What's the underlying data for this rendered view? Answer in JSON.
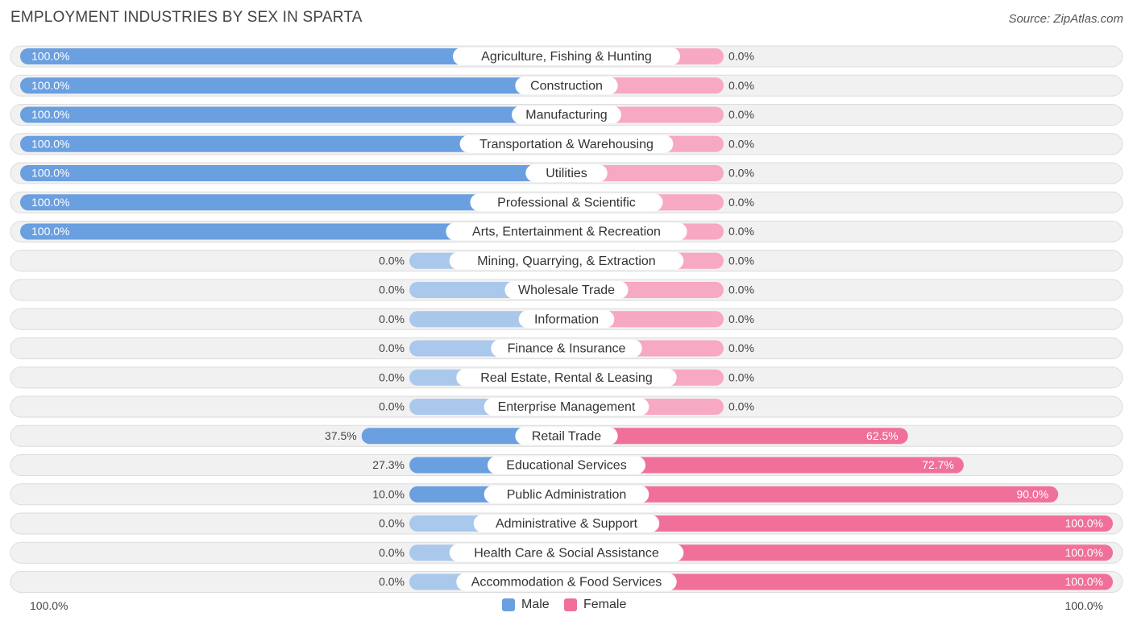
{
  "title": "EMPLOYMENT INDUSTRIES BY SEX IN SPARTA",
  "source": "Source: ZipAtlas.com",
  "colors": {
    "male": "#6a9fe0",
    "male_light": "#a9c8ec",
    "female": "#f07099",
    "female_light": "#f7a8c2",
    "row_bg": "#f1f1f1",
    "row_border": "#dcdcdc"
  },
  "legend": {
    "male": "Male",
    "female": "Female"
  },
  "axis": {
    "left": "100.0%",
    "right": "100.0%"
  },
  "chart_data": {
    "type": "bar",
    "orientation": "horizontal-diverging",
    "title": "EMPLOYMENT INDUSTRIES BY SEX IN SPARTA",
    "categories": [
      "Agriculture, Fishing & Hunting",
      "Construction",
      "Manufacturing",
      "Transportation & Warehousing",
      "Utilities",
      "Professional & Scientific",
      "Arts, Entertainment & Recreation",
      "Mining, Quarrying, & Extraction",
      "Wholesale Trade",
      "Information",
      "Finance & Insurance",
      "Real Estate, Rental & Leasing",
      "Enterprise Management",
      "Retail Trade",
      "Educational Services",
      "Public Administration",
      "Administrative & Support",
      "Health Care & Social Assistance",
      "Accommodation & Food Services"
    ],
    "series": [
      {
        "name": "Male",
        "values": [
          100.0,
          100.0,
          100.0,
          100.0,
          100.0,
          100.0,
          100.0,
          0.0,
          0.0,
          0.0,
          0.0,
          0.0,
          0.0,
          37.5,
          27.3,
          10.0,
          0.0,
          0.0,
          0.0
        ],
        "labels": [
          "100.0%",
          "100.0%",
          "100.0%",
          "100.0%",
          "100.0%",
          "100.0%",
          "100.0%",
          "0.0%",
          "0.0%",
          "0.0%",
          "0.0%",
          "0.0%",
          "0.0%",
          "37.5%",
          "27.3%",
          "10.0%",
          "0.0%",
          "0.0%",
          "0.0%"
        ]
      },
      {
        "name": "Female",
        "values": [
          0.0,
          0.0,
          0.0,
          0.0,
          0.0,
          0.0,
          0.0,
          0.0,
          0.0,
          0.0,
          0.0,
          0.0,
          0.0,
          62.5,
          72.7,
          90.0,
          100.0,
          100.0,
          100.0
        ],
        "labels": [
          "0.0%",
          "0.0%",
          "0.0%",
          "0.0%",
          "0.0%",
          "0.0%",
          "0.0%",
          "0.0%",
          "0.0%",
          "0.0%",
          "0.0%",
          "0.0%",
          "0.0%",
          "62.5%",
          "72.7%",
          "90.0%",
          "100.0%",
          "100.0%",
          "100.0%"
        ]
      }
    ],
    "xlim": [
      -100,
      100
    ],
    "legend_position": "bottom-center"
  }
}
